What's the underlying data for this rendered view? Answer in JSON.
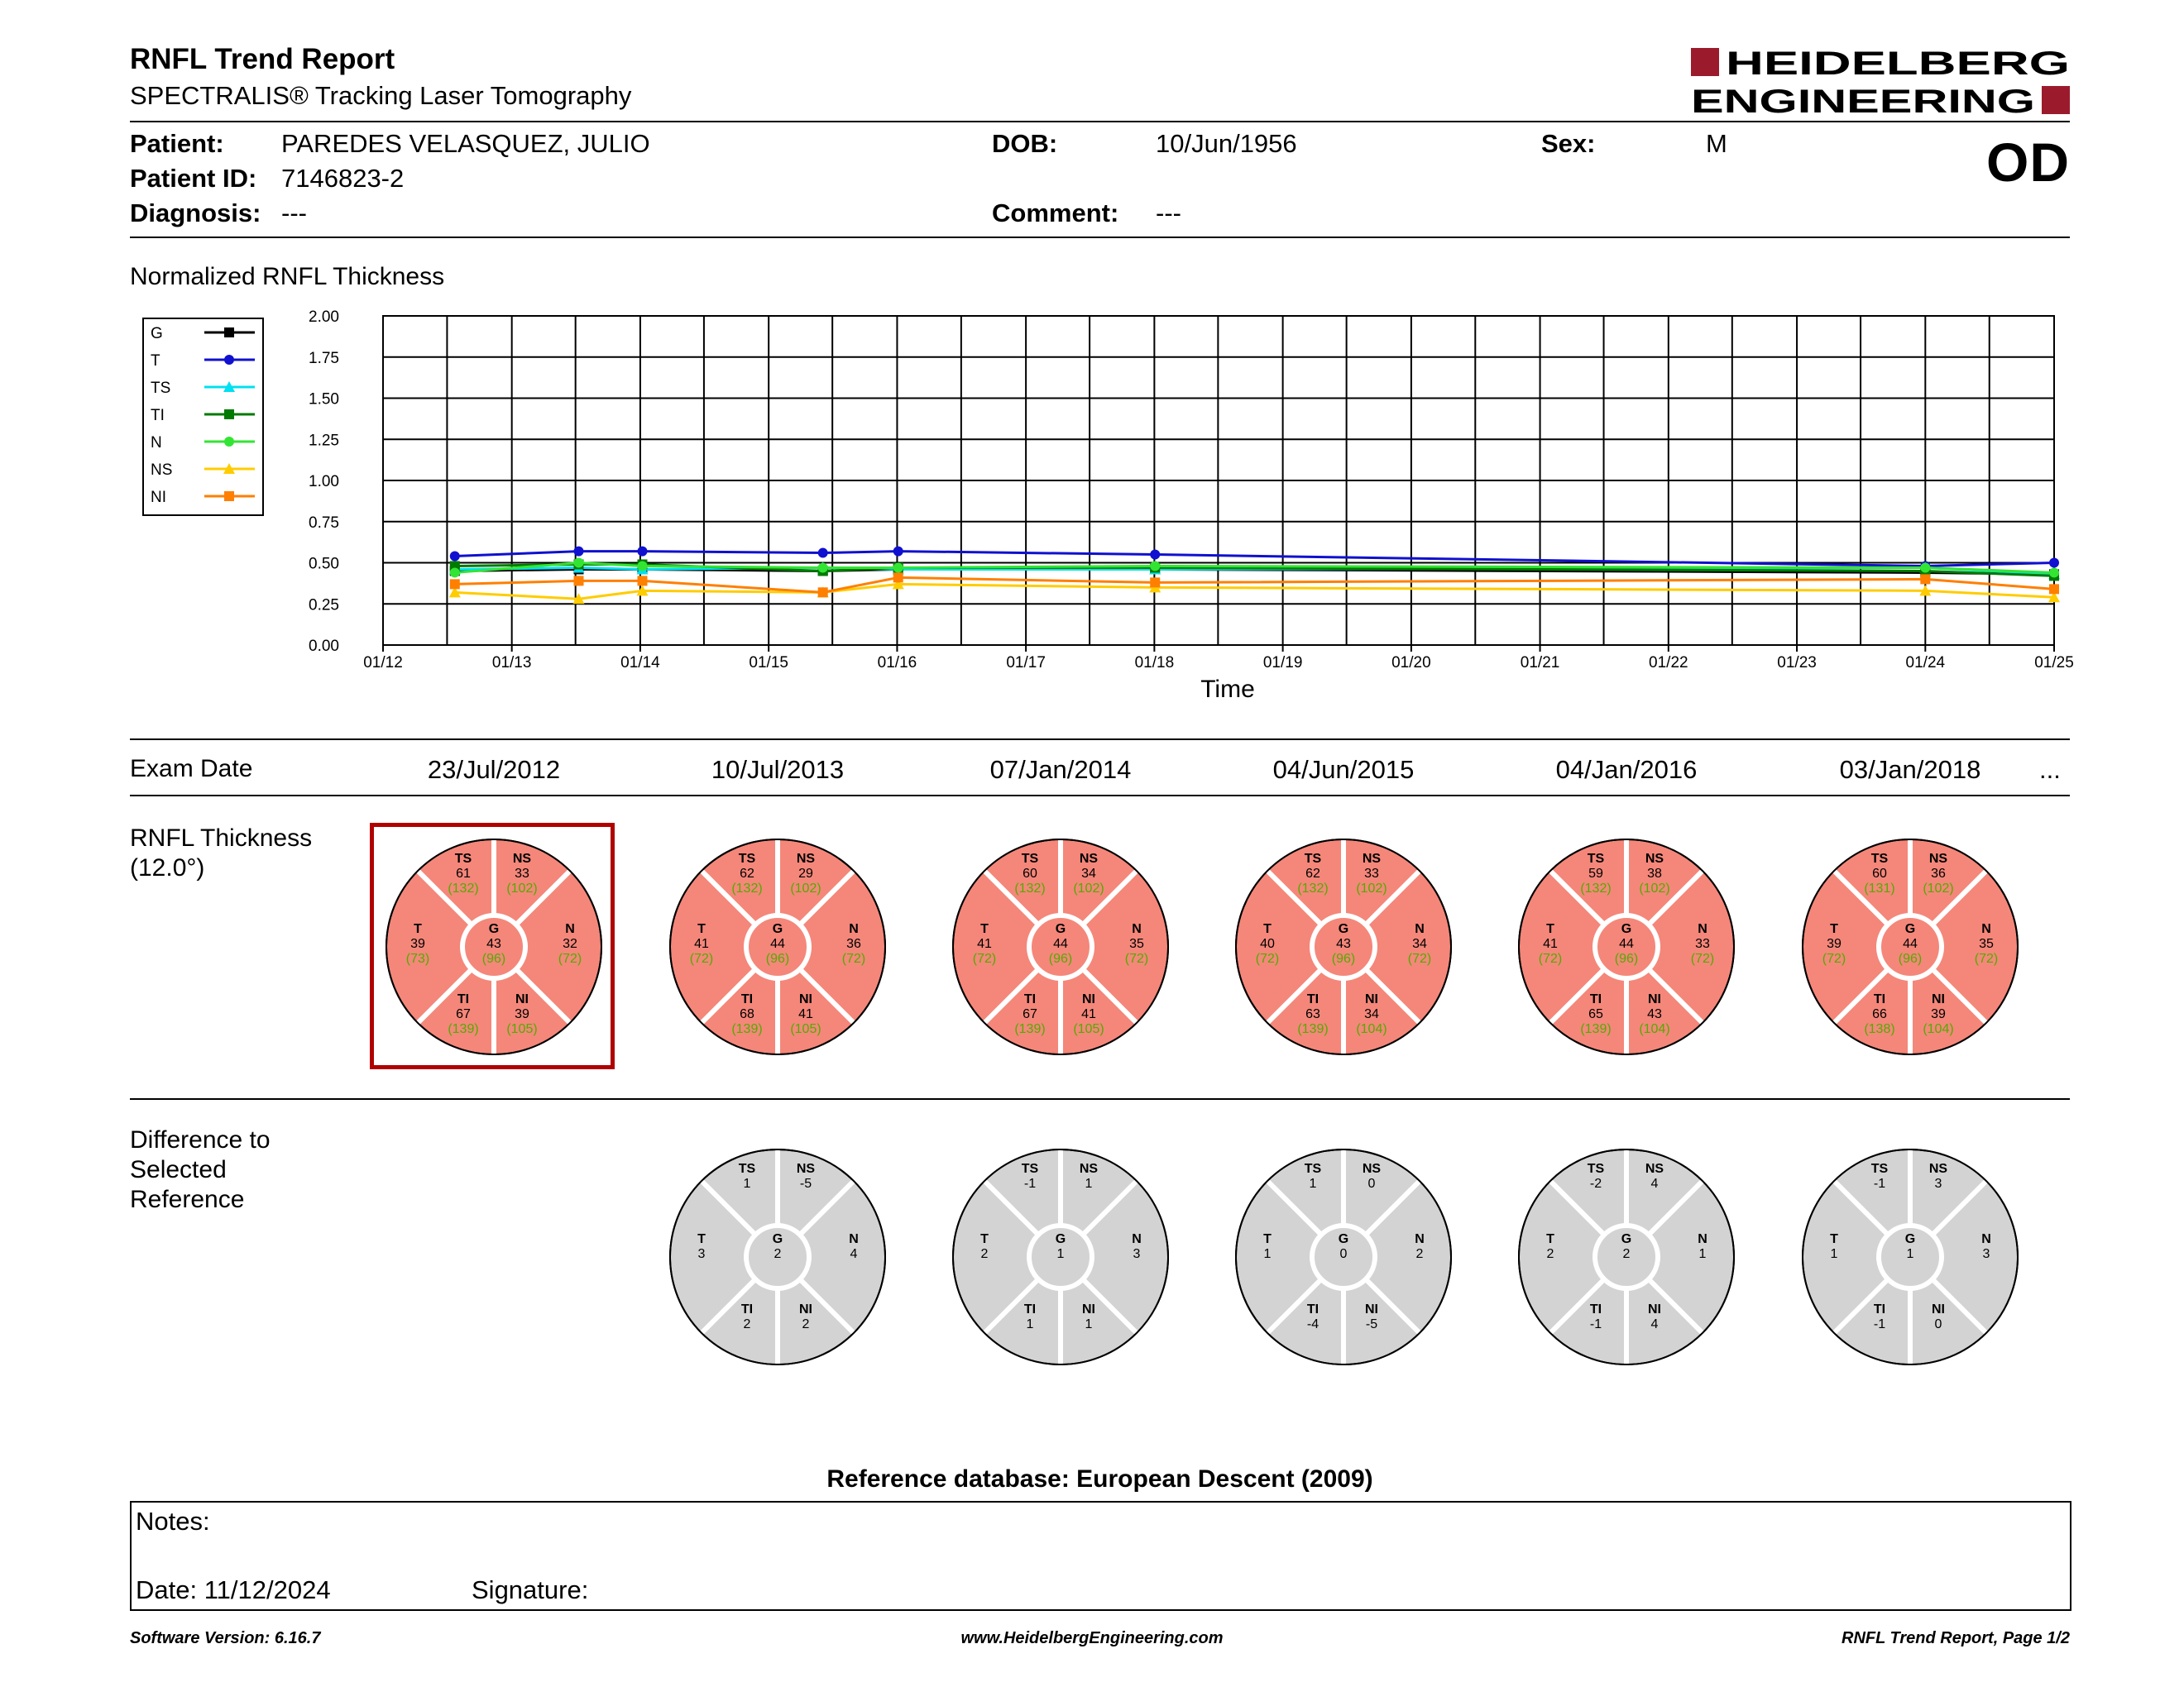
{
  "header": {
    "title": "RNFL Trend Report",
    "subtitle": "SPECTRALIS® Tracking Laser Tomography",
    "brand_line1": "HEIDELBERG",
    "brand_line2": "ENGINEERING",
    "eye": "OD"
  },
  "patient": {
    "patient_label": "Patient:",
    "patient_value": "PAREDES VELASQUEZ, JULIO",
    "id_label": "Patient ID:",
    "id_value": "7146823-2",
    "diagnosis_label": "Diagnosis:",
    "diagnosis_value": "---",
    "dob_label": "DOB:",
    "dob_value": "10/Jun/1956",
    "comment_label": "Comment:",
    "comment_value": "---",
    "sex_label": "Sex:",
    "sex_value": "M"
  },
  "chart_data": {
    "type": "line",
    "title": "Normalized RNFL Thickness",
    "xlabel": "Time",
    "ylabel": "",
    "ylim": [
      0,
      2
    ],
    "yticks": [
      "0.00",
      "0.25",
      "0.50",
      "0.75",
      "1.00",
      "1.25",
      "1.50",
      "1.75",
      "2.00"
    ],
    "xticks": [
      "01/12",
      "01/13",
      "01/14",
      "01/15",
      "01/16",
      "01/17",
      "01/18",
      "01/19",
      "01/20",
      "01/21",
      "01/22",
      "01/23",
      "01/24",
      "01/25"
    ],
    "x": [
      "2012-07-23",
      "2013-07-10",
      "2014-01-07",
      "2015-06-04",
      "2016-01-04",
      "2018-01-03",
      "2024-01-01",
      "2025-01-01"
    ],
    "legend_position": "top-left",
    "grid": true,
    "series": [
      {
        "name": "G",
        "color": "#000000",
        "marker": "square",
        "values": [
          0.45,
          0.46,
          0.46,
          0.45,
          0.46,
          0.46,
          0.44,
          0.43
        ]
      },
      {
        "name": "T",
        "color": "#1010d0",
        "marker": "circle",
        "values": [
          0.54,
          0.57,
          0.57,
          0.56,
          0.57,
          0.55,
          0.48,
          0.5
        ]
      },
      {
        "name": "TS",
        "color": "#00e0f0",
        "marker": "triangle",
        "values": [
          0.46,
          0.47,
          0.46,
          0.47,
          0.46,
          0.46,
          0.47,
          0.43
        ]
      },
      {
        "name": "TI",
        "color": "#007a00",
        "marker": "square",
        "values": [
          0.48,
          0.49,
          0.49,
          0.45,
          0.47,
          0.47,
          0.45,
          0.42
        ]
      },
      {
        "name": "N",
        "color": "#33e533",
        "marker": "circle",
        "values": [
          0.44,
          0.5,
          0.48,
          0.47,
          0.47,
          0.48,
          0.47,
          0.44
        ]
      },
      {
        "name": "NS",
        "color": "#ffcc00",
        "marker": "triangle",
        "values": [
          0.32,
          0.28,
          0.33,
          0.32,
          0.37,
          0.35,
          0.33,
          0.29
        ]
      },
      {
        "name": "NI",
        "color": "#ff7f00",
        "marker": "square",
        "values": [
          0.37,
          0.39,
          0.39,
          0.32,
          0.41,
          0.38,
          0.4,
          0.34
        ]
      }
    ]
  },
  "exam_section": {
    "label": "Exam Date",
    "dates": [
      "23/Jul/2012",
      "10/Jul/2013",
      "07/Jan/2014",
      "04/Jun/2015",
      "04/Jan/2016",
      "03/Jan/2018"
    ],
    "more": "...",
    "selected_index": 0
  },
  "thickness_section": {
    "label_line1": "RNFL Thickness",
    "label_line2": "(12.0°)",
    "fill_color": "#f4877a",
    "value_color": "#000000",
    "ref_color": "#55aa00",
    "selected_border": "#b00000",
    "exams": [
      {
        "TS": [
          "61",
          "(132)"
        ],
        "NS": [
          "33",
          "(102)"
        ],
        "T": [
          "39",
          "(73)"
        ],
        "G": [
          "43",
          "(96)"
        ],
        "N": [
          "32",
          "(72)"
        ],
        "TI": [
          "67",
          "(139)"
        ],
        "NI": [
          "39",
          "(105)"
        ]
      },
      {
        "TS": [
          "62",
          "(132)"
        ],
        "NS": [
          "29",
          "(102)"
        ],
        "T": [
          "41",
          "(72)"
        ],
        "G": [
          "44",
          "(96)"
        ],
        "N": [
          "36",
          "(72)"
        ],
        "TI": [
          "68",
          "(139)"
        ],
        "NI": [
          "41",
          "(105)"
        ]
      },
      {
        "TS": [
          "60",
          "(132)"
        ],
        "NS": [
          "34",
          "(102)"
        ],
        "T": [
          "41",
          "(72)"
        ],
        "G": [
          "44",
          "(96)"
        ],
        "N": [
          "35",
          "(72)"
        ],
        "TI": [
          "67",
          "(139)"
        ],
        "NI": [
          "41",
          "(105)"
        ]
      },
      {
        "TS": [
          "62",
          "(132)"
        ],
        "NS": [
          "33",
          "(102)"
        ],
        "T": [
          "40",
          "(72)"
        ],
        "G": [
          "43",
          "(96)"
        ],
        "N": [
          "34",
          "(72)"
        ],
        "TI": [
          "63",
          "(139)"
        ],
        "NI": [
          "34",
          "(104)"
        ]
      },
      {
        "TS": [
          "59",
          "(132)"
        ],
        "NS": [
          "38",
          "(102)"
        ],
        "T": [
          "41",
          "(72)"
        ],
        "G": [
          "44",
          "(96)"
        ],
        "N": [
          "33",
          "(72)"
        ],
        "TI": [
          "65",
          "(139)"
        ],
        "NI": [
          "43",
          "(104)"
        ]
      },
      {
        "TS": [
          "60",
          "(131)"
        ],
        "NS": [
          "36",
          "(102)"
        ],
        "T": [
          "39",
          "(72)"
        ],
        "G": [
          "44",
          "(96)"
        ],
        "N": [
          "35",
          "(72)"
        ],
        "TI": [
          "66",
          "(138)"
        ],
        "NI": [
          "39",
          "(104)"
        ]
      }
    ]
  },
  "difference_section": {
    "label_line1": "Difference to",
    "label_line2": "Selected",
    "label_line3": "Reference",
    "fill_color": "#d3d3d3",
    "exams": [
      null,
      {
        "TS": "1",
        "NS": "-5",
        "T": "3",
        "G": "2",
        "N": "4",
        "TI": "2",
        "NI": "2"
      },
      {
        "TS": "-1",
        "NS": "1",
        "T": "2",
        "G": "1",
        "N": "3",
        "TI": "1",
        "NI": "1"
      },
      {
        "TS": "1",
        "NS": "0",
        "T": "1",
        "G": "0",
        "N": "2",
        "TI": "-4",
        "NI": "-5"
      },
      {
        "TS": "-2",
        "NS": "4",
        "T": "2",
        "G": "2",
        "N": "1",
        "TI": "-1",
        "NI": "4"
      },
      {
        "TS": "-1",
        "NS": "3",
        "T": "1",
        "G": "1",
        "N": "3",
        "TI": "-1",
        "NI": "0"
      }
    ]
  },
  "reference_db": "Reference database: European Descent (2009)",
  "notes": {
    "notes_label": "Notes:",
    "date_label": "Date: 11/12/2024",
    "signature_label": "Signature:"
  },
  "footer": {
    "software": "Software Version: 6.16.7",
    "website": "www.HeidelbergEngineering.com",
    "page": "RNFL Trend Report, Page 1/2"
  }
}
